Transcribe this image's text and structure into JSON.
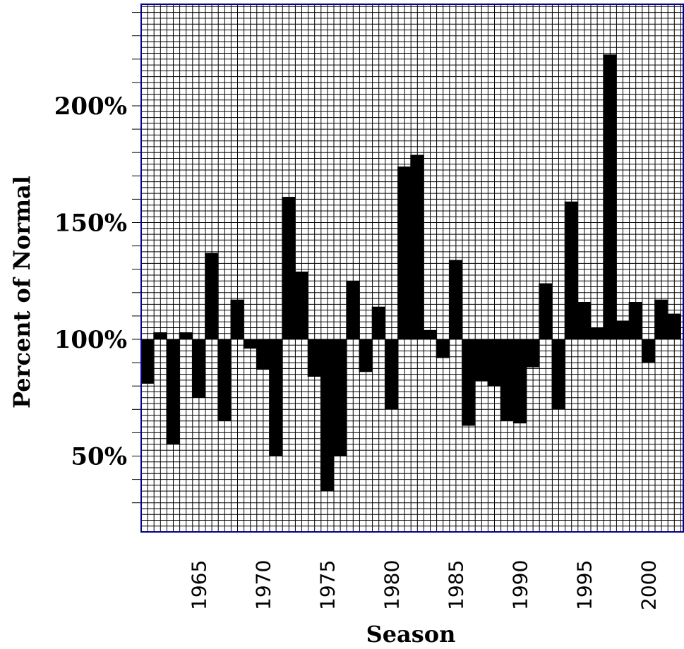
{
  "chart_data": {
    "type": "bar",
    "xlabel": "Season",
    "ylabel": "Percent of Normal",
    "baseline": 100,
    "ylim": [
      22,
      245
    ],
    "yticks": [
      50,
      100,
      150,
      200
    ],
    "ytick_labels": [
      "50%",
      "100%",
      "150%",
      "200%"
    ],
    "xticks": [
      1965,
      1970,
      1975,
      1980,
      1985,
      1990,
      1995,
      2000
    ],
    "xtick_labels": [
      "1965",
      "1970",
      "1975",
      "1980",
      "1985",
      "1990",
      "1995",
      "2000"
    ],
    "grid": true,
    "colors": {
      "bar": "#000000",
      "grid": "#000000",
      "frame": "#00008b",
      "background": "#ffffff"
    },
    "x": [
      1961,
      1962,
      1963,
      1964,
      1965,
      1966,
      1967,
      1968,
      1969,
      1970,
      1971,
      1972,
      1973,
      1974,
      1975,
      1976,
      1977,
      1978,
      1979,
      1980,
      1981,
      1982,
      1983,
      1984,
      1985,
      1986,
      1987,
      1988,
      1989,
      1990,
      1991,
      1992,
      1993,
      1994,
      1995,
      1996,
      1997,
      1998,
      1999,
      2000,
      2001,
      2002
    ],
    "values": [
      81,
      103,
      55,
      103,
      75,
      137,
      65,
      117,
      96,
      87,
      50,
      161,
      129,
      84,
      35,
      50,
      125,
      86,
      114,
      70,
      174,
      179,
      104,
      92,
      134,
      63,
      82,
      80,
      65,
      64,
      88,
      124,
      70,
      159,
      116,
      105,
      222,
      108,
      116,
      90,
      117,
      111
    ]
  }
}
